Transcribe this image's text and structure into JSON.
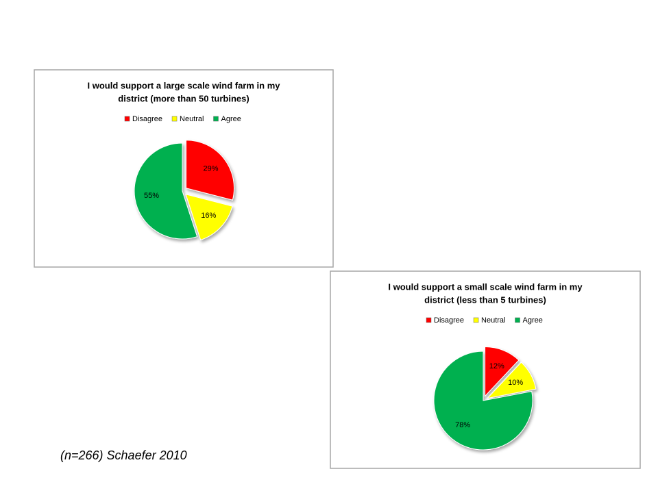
{
  "chart_data": [
    {
      "type": "pie",
      "title": [
        "I would support a large scale wind farm in my",
        "district (more than 50  turbines)"
      ],
      "categories": [
        "Disagree",
        "Neutral",
        "Agree"
      ],
      "values": [
        29,
        16,
        55
      ],
      "value_labels": [
        "29%",
        "16%",
        "55%"
      ],
      "colors": [
        "#ff0000",
        "#ffff00",
        "#00b050"
      ],
      "legend": "top"
    },
    {
      "type": "pie",
      "title": [
        "I would support a small scale wind farm in my",
        "district (less than 5 turbines)"
      ],
      "categories": [
        "Disagree",
        "Neutral",
        "Agree"
      ],
      "values": [
        12,
        10,
        78
      ],
      "value_labels": [
        "12%",
        "10%",
        "78%"
      ],
      "colors": [
        "#ff0000",
        "#ffff00",
        "#00b050"
      ],
      "legend": "top"
    }
  ],
  "caption": "(n=266) Schaefer 2010"
}
